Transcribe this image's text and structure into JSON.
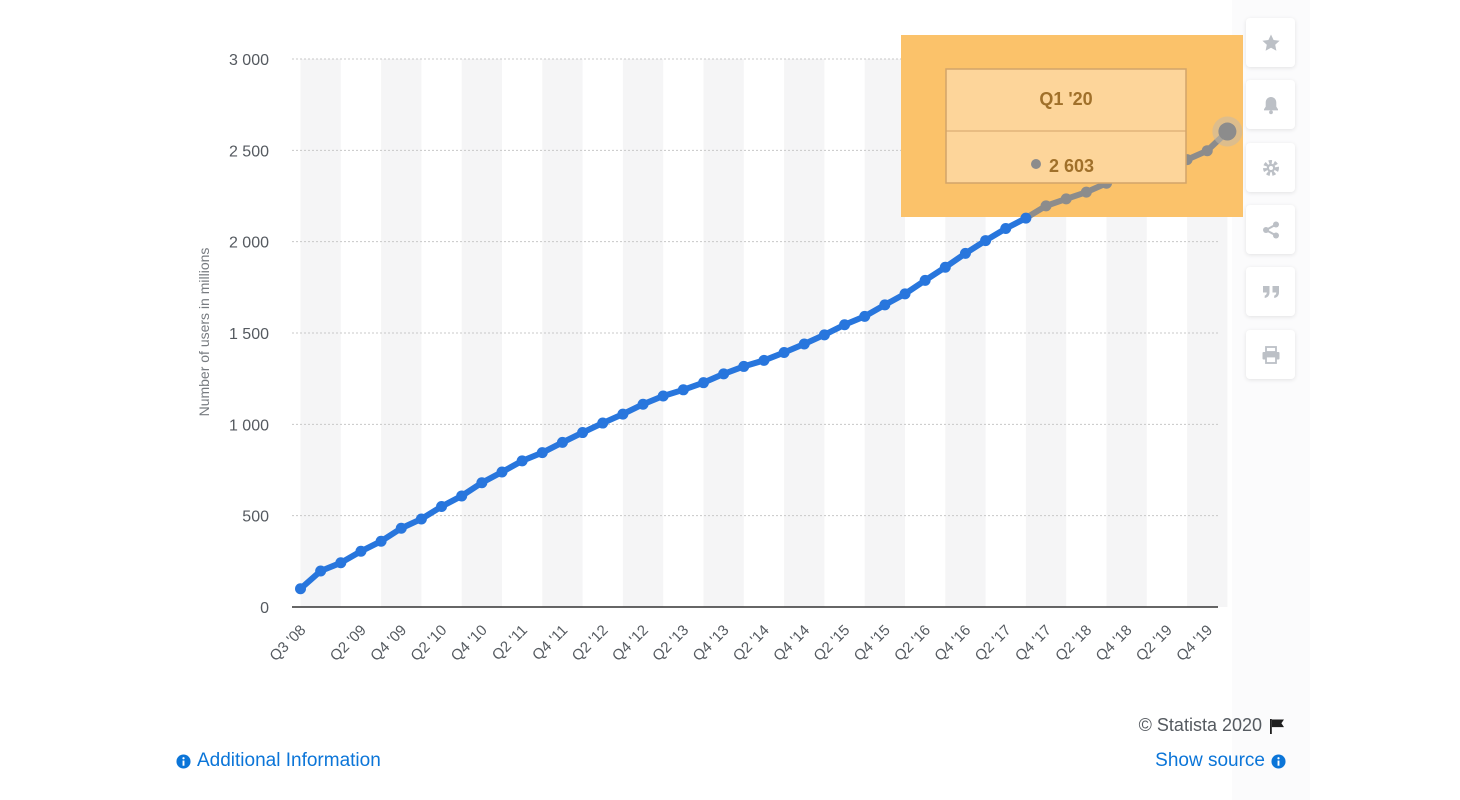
{
  "chart_data": {
    "type": "line",
    "title": "",
    "xlabel": "",
    "ylabel": "Number of users in millions",
    "ylim": [
      0,
      3000
    ],
    "yticks": [
      0,
      500,
      1000,
      1500,
      2000,
      2500,
      3000
    ],
    "ytick_labels": [
      "0",
      "500",
      "1 000",
      "1 500",
      "2 000",
      "2 500",
      "3 000"
    ],
    "grid": true,
    "legend": "none",
    "categories": [
      "Q3 '08",
      "Q4 '08",
      "Q1 '09",
      "Q2 '09",
      "Q3 '09",
      "Q4 '09",
      "Q1 '10",
      "Q2 '10",
      "Q3 '10",
      "Q4 '10",
      "Q1 '11",
      "Q2 '11",
      "Q3 '11",
      "Q4 '11",
      "Q1 '12",
      "Q2 '12",
      "Q3 '12",
      "Q4 '12",
      "Q1 '13",
      "Q2 '13",
      "Q3 '13",
      "Q4 '13",
      "Q1 '14",
      "Q2 '14",
      "Q3 '14",
      "Q4 '14",
      "Q1 '15",
      "Q2 '15",
      "Q3 '15",
      "Q4 '15",
      "Q1 '16",
      "Q2 '16",
      "Q3 '16",
      "Q4 '16",
      "Q1 '17",
      "Q2 '17",
      "Q3 '17",
      "Q4 '17",
      "Q1 '18",
      "Q2 '18",
      "Q3 '18",
      "Q4 '18",
      "Q1 '19",
      "Q2 '19",
      "Q3 '19",
      "Q4 '19",
      "Q1 '20"
    ],
    "xtick_labels": [
      "Q3 '08",
      "Q2 '09",
      "Q4 '09",
      "Q2 '10",
      "Q4 '10",
      "Q2 '11",
      "Q4 '11",
      "Q2 '12",
      "Q4 '12",
      "Q2 '13",
      "Q4 '13",
      "Q2 '14",
      "Q4 '14",
      "Q2 '15",
      "Q4 '15",
      "Q2 '16",
      "Q4 '16",
      "Q2 '17",
      "Q4 '17",
      "Q2 '18",
      "Q4 '18",
      "Q2 '19",
      "Q4 '19"
    ],
    "series": [
      {
        "values": [
          100,
          197,
          242,
          305,
          360,
          431,
          482,
          550,
          608,
          680,
          739,
          800,
          845,
          901,
          955,
          1007,
          1056,
          1110,
          1155,
          1189,
          1228,
          1276,
          1317,
          1350,
          1393,
          1440,
          1490,
          1545,
          1591,
          1654,
          1714,
          1788,
          1860,
          1936,
          2006,
          2072,
          2129,
          2196,
          2234,
          2271,
          2320,
          2375,
          2380,
          2414,
          2449,
          2498,
          2603
        ],
        "color": "#2876dd",
        "highlight_color": "#8c8c8c"
      }
    ],
    "tooltip": {
      "category": "Q1 '20",
      "value": "2 603"
    }
  },
  "colors": {
    "line": "#2876dd",
    "grid": "#c8c8c8",
    "band": "#f5f5f6",
    "highlight_box": "#fbc26a",
    "tooltip_text": "#a0702a",
    "link": "#0b75d8",
    "icon": "#bcc0c6"
  },
  "toolbar": {
    "buttons": [
      {
        "name": "favorite",
        "icon": "star-icon"
      },
      {
        "name": "notification",
        "icon": "bell-icon"
      },
      {
        "name": "settings",
        "icon": "gear-icon"
      },
      {
        "name": "share",
        "icon": "share-icon"
      },
      {
        "name": "cite",
        "icon": "quote-icon"
      },
      {
        "name": "print",
        "icon": "print-icon"
      }
    ]
  },
  "footer": {
    "copyright": "© Statista 2020",
    "additional_info": "Additional Information",
    "show_source": "Show source"
  }
}
